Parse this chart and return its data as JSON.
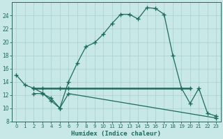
{
  "line1_x": [
    0,
    1,
    2,
    3,
    4,
    5,
    6,
    7,
    8,
    9,
    10,
    11,
    12,
    13,
    14,
    15,
    16,
    17,
    18,
    19,
    20,
    21,
    22,
    23
  ],
  "line1_y": [
    15,
    13.5,
    13.0,
    12.3,
    11.1,
    10.0,
    14.0,
    16.8,
    19.3,
    19.9,
    21.2,
    22.8,
    24.2,
    24.2,
    23.5,
    25.2,
    25.1,
    24.2,
    18.0,
    13.0,
    10.7,
    13.0,
    9.2,
    8.8
  ],
  "line2_x": [
    2,
    3,
    5,
    6,
    20
  ],
  "line2_y": [
    13.0,
    13.0,
    13.0,
    13.0,
    13.0
  ],
  "line3_x": [
    2,
    3,
    4,
    5,
    6,
    23
  ],
  "line3_y": [
    12.2,
    12.2,
    11.5,
    10.0,
    12.2,
    8.5
  ],
  "line_color": "#1a6b5a",
  "bg_color": "#c8e8e8",
  "grid_color": "#aacece",
  "xlabel": "Humidex (Indice chaleur)",
  "ylim": [
    8,
    26
  ],
  "xlim": [
    -0.5,
    23.5
  ],
  "yticks": [
    8,
    10,
    12,
    14,
    16,
    18,
    20,
    22,
    24
  ],
  "xticks": [
    0,
    1,
    2,
    3,
    4,
    5,
    6,
    7,
    8,
    9,
    10,
    11,
    12,
    13,
    14,
    15,
    16,
    17,
    18,
    19,
    20,
    21,
    22,
    23
  ]
}
